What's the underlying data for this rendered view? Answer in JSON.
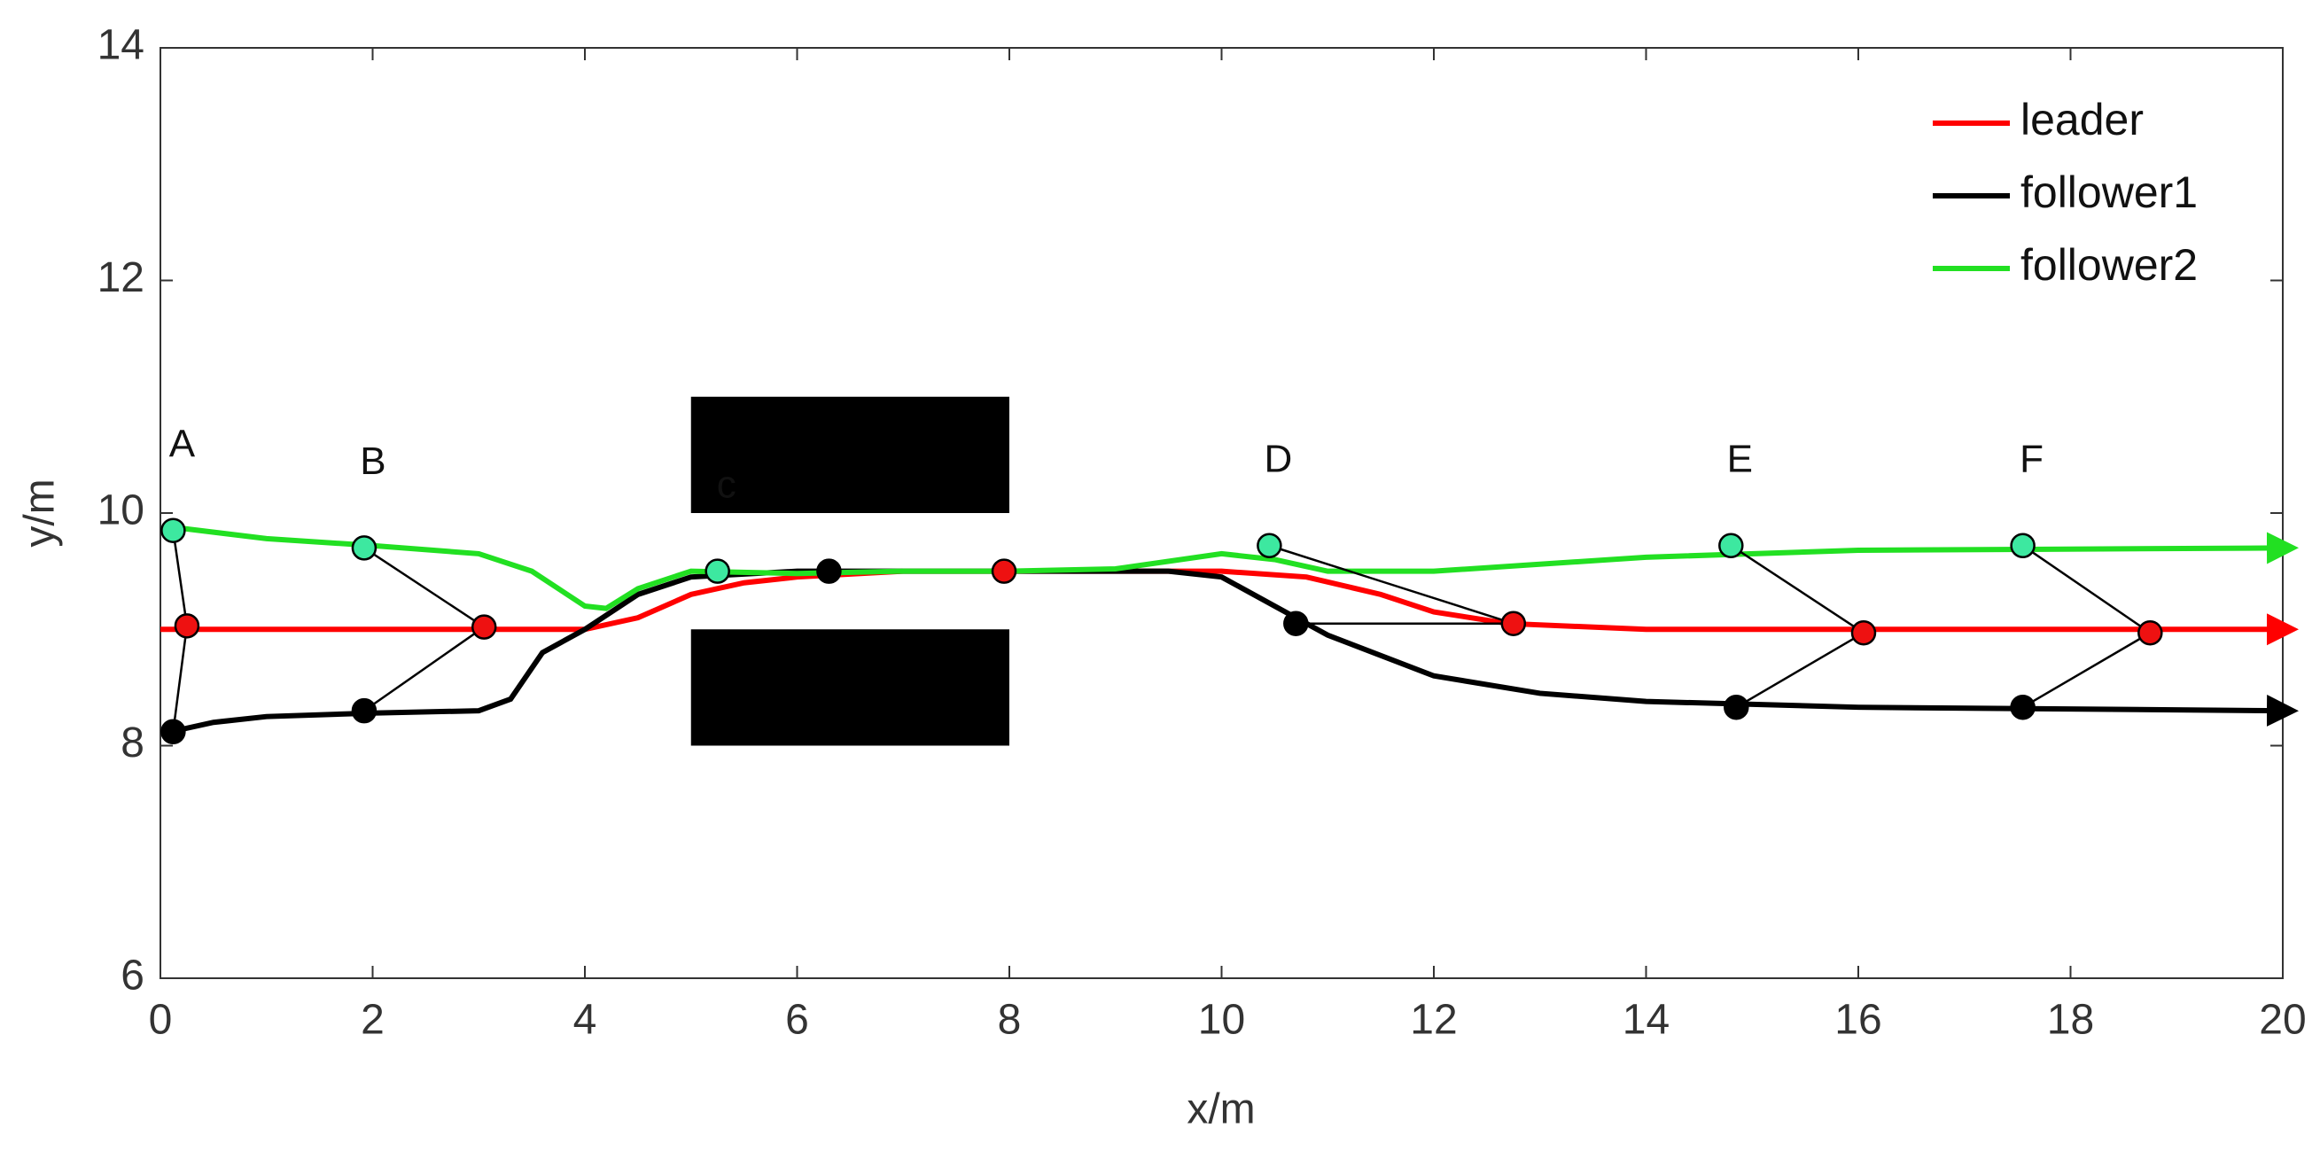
{
  "chart_data": {
    "type": "line",
    "xlabel": "x/m",
    "ylabel": "y/m",
    "xlim": [
      0,
      20
    ],
    "ylim": [
      6,
      14
    ],
    "xticks": [
      0,
      2,
      4,
      6,
      8,
      10,
      12,
      14,
      16,
      18,
      20
    ],
    "yticks": [
      6,
      8,
      10,
      12,
      14
    ],
    "legend": "top-right",
    "series": [
      {
        "name": "leader",
        "color": "#ff0000",
        "marker_color": "#ee1111",
        "x": [
          0,
          3.5,
          4,
          4.5,
          5,
          5.5,
          6,
          7,
          8,
          10,
          10.8,
          11.5,
          12,
          12.7,
          14,
          20
        ],
        "values": [
          9,
          9,
          9,
          9.1,
          9.3,
          9.4,
          9.45,
          9.5,
          9.5,
          9.5,
          9.45,
          9.3,
          9.15,
          9.05,
          9.0,
          9.0
        ]
      },
      {
        "name": "follower1",
        "color": "#000000",
        "marker_color": "#000000",
        "x": [
          0.1,
          0.5,
          1,
          2,
          3,
          3.3,
          3.6,
          4,
          4.5,
          5,
          6,
          8,
          9.5,
          10,
          10.7,
          11,
          12,
          13,
          14,
          16,
          20
        ],
        "values": [
          8.12,
          8.2,
          8.25,
          8.28,
          8.3,
          8.4,
          8.8,
          9.0,
          9.3,
          9.45,
          9.5,
          9.5,
          9.5,
          9.45,
          9.1,
          8.95,
          8.6,
          8.45,
          8.38,
          8.33,
          8.3
        ]
      },
      {
        "name": "follower2",
        "color": "#22e022",
        "marker_color": "#3de8a0",
        "x": [
          0.1,
          1,
          2,
          3,
          3.5,
          4,
          4.2,
          4.5,
          5,
          6,
          7,
          8,
          9,
          10,
          10.5,
          11,
          12,
          14,
          16,
          20
        ],
        "values": [
          9.88,
          9.78,
          9.72,
          9.65,
          9.5,
          9.2,
          9.18,
          9.35,
          9.5,
          9.48,
          9.5,
          9.5,
          9.52,
          9.65,
          9.6,
          9.5,
          9.5,
          9.62,
          9.68,
          9.7
        ]
      }
    ],
    "formations": [
      {
        "label": "A",
        "points": [
          {
            "x": 0.12,
            "y": 9.85
          },
          {
            "x": 0.25,
            "y": 9.03
          },
          {
            "x": 0.12,
            "y": 8.12
          }
        ]
      },
      {
        "label": "B",
        "points": [
          {
            "x": 1.92,
            "y": 9.7
          },
          {
            "x": 3.05,
            "y": 9.02
          },
          {
            "x": 1.92,
            "y": 8.3
          }
        ]
      },
      {
        "label": "c",
        "points": [
          {
            "x": 5.25,
            "y": 9.5
          },
          {
            "x": 7.95,
            "y": 9.5
          },
          {
            "x": 6.3,
            "y": 9.5
          }
        ]
      },
      {
        "label": "D",
        "points": [
          {
            "x": 10.45,
            "y": 9.72
          },
          {
            "x": 12.75,
            "y": 9.05
          },
          {
            "x": 10.7,
            "y": 9.05
          }
        ]
      },
      {
        "label": "E",
        "points": [
          {
            "x": 14.8,
            "y": 9.72
          },
          {
            "x": 16.05,
            "y": 8.97
          },
          {
            "x": 14.85,
            "y": 8.33
          }
        ]
      },
      {
        "label": "F",
        "points": [
          {
            "x": 17.55,
            "y": 9.72
          },
          {
            "x": 18.75,
            "y": 8.97
          },
          {
            "x": 17.55,
            "y": 8.33
          }
        ]
      }
    ],
    "obstacles": [
      {
        "x": [
          5,
          8
        ],
        "y": [
          10,
          11
        ]
      },
      {
        "x": [
          5,
          8
        ],
        "y": [
          8,
          9
        ]
      }
    ]
  }
}
